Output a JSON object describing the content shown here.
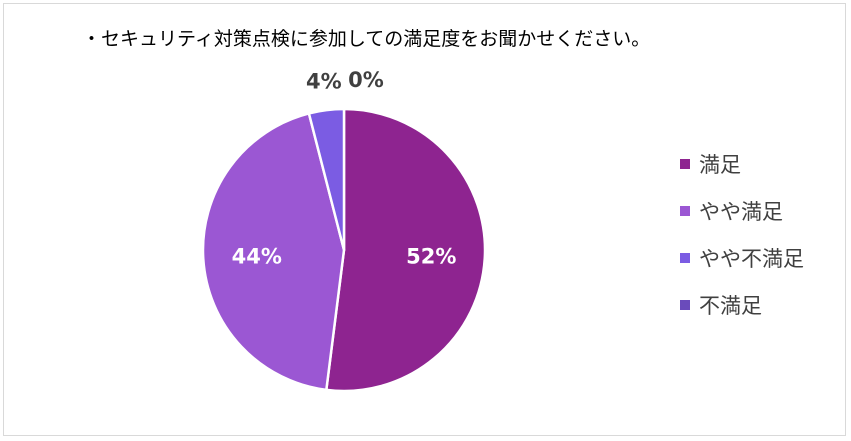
{
  "chart_data": {
    "type": "pie",
    "title": "・セキュリティ対策点検に参加しての満足度をお聞かせください。",
    "categories": [
      "満足",
      "やや満足",
      "やや不満足",
      "不満足"
    ],
    "values": [
      52,
      44,
      4,
      0
    ],
    "data_labels": [
      "52%",
      "44%",
      "4%",
      "0%"
    ],
    "colors": [
      "#8e2490",
      "#9b57d3",
      "#7b5ce3",
      "#6a4bbb"
    ],
    "legend_position": "right",
    "start_angle": "12 o'clock, clockwise"
  }
}
